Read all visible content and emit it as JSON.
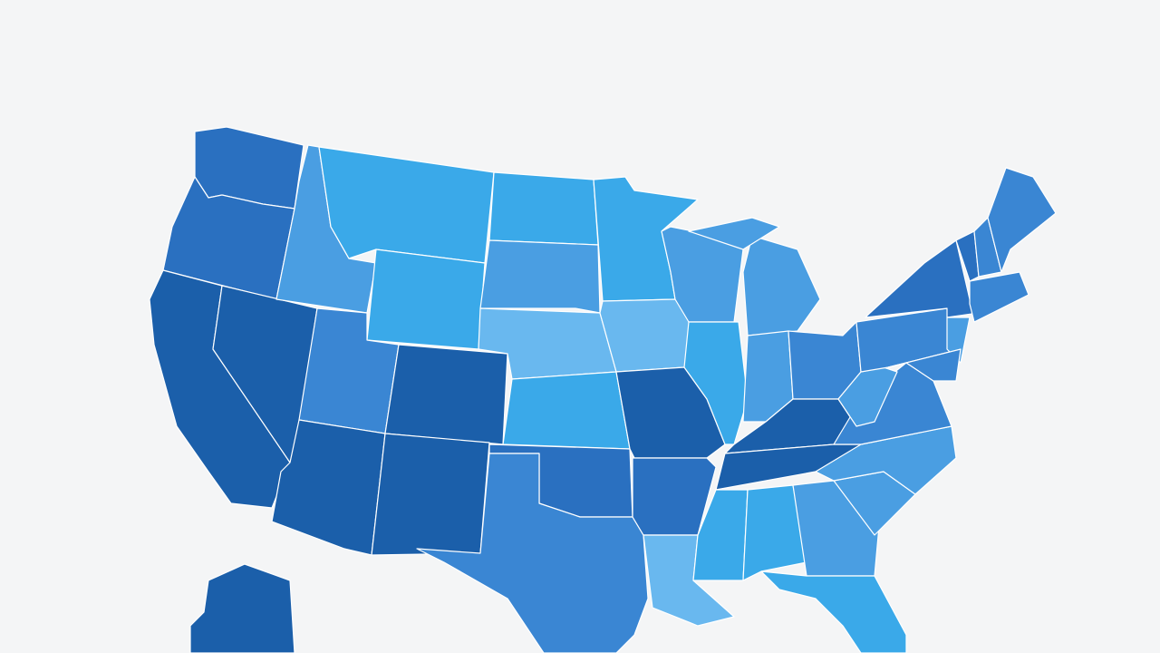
{
  "map": {
    "shades": [
      "#1b5faa",
      "#2a70c0",
      "#3a86d3",
      "#4a9ee2",
      "#3aa9e9",
      "#69b8ef"
    ],
    "background": "#f4f5f6",
    "border": "#ffffff"
  }
}
